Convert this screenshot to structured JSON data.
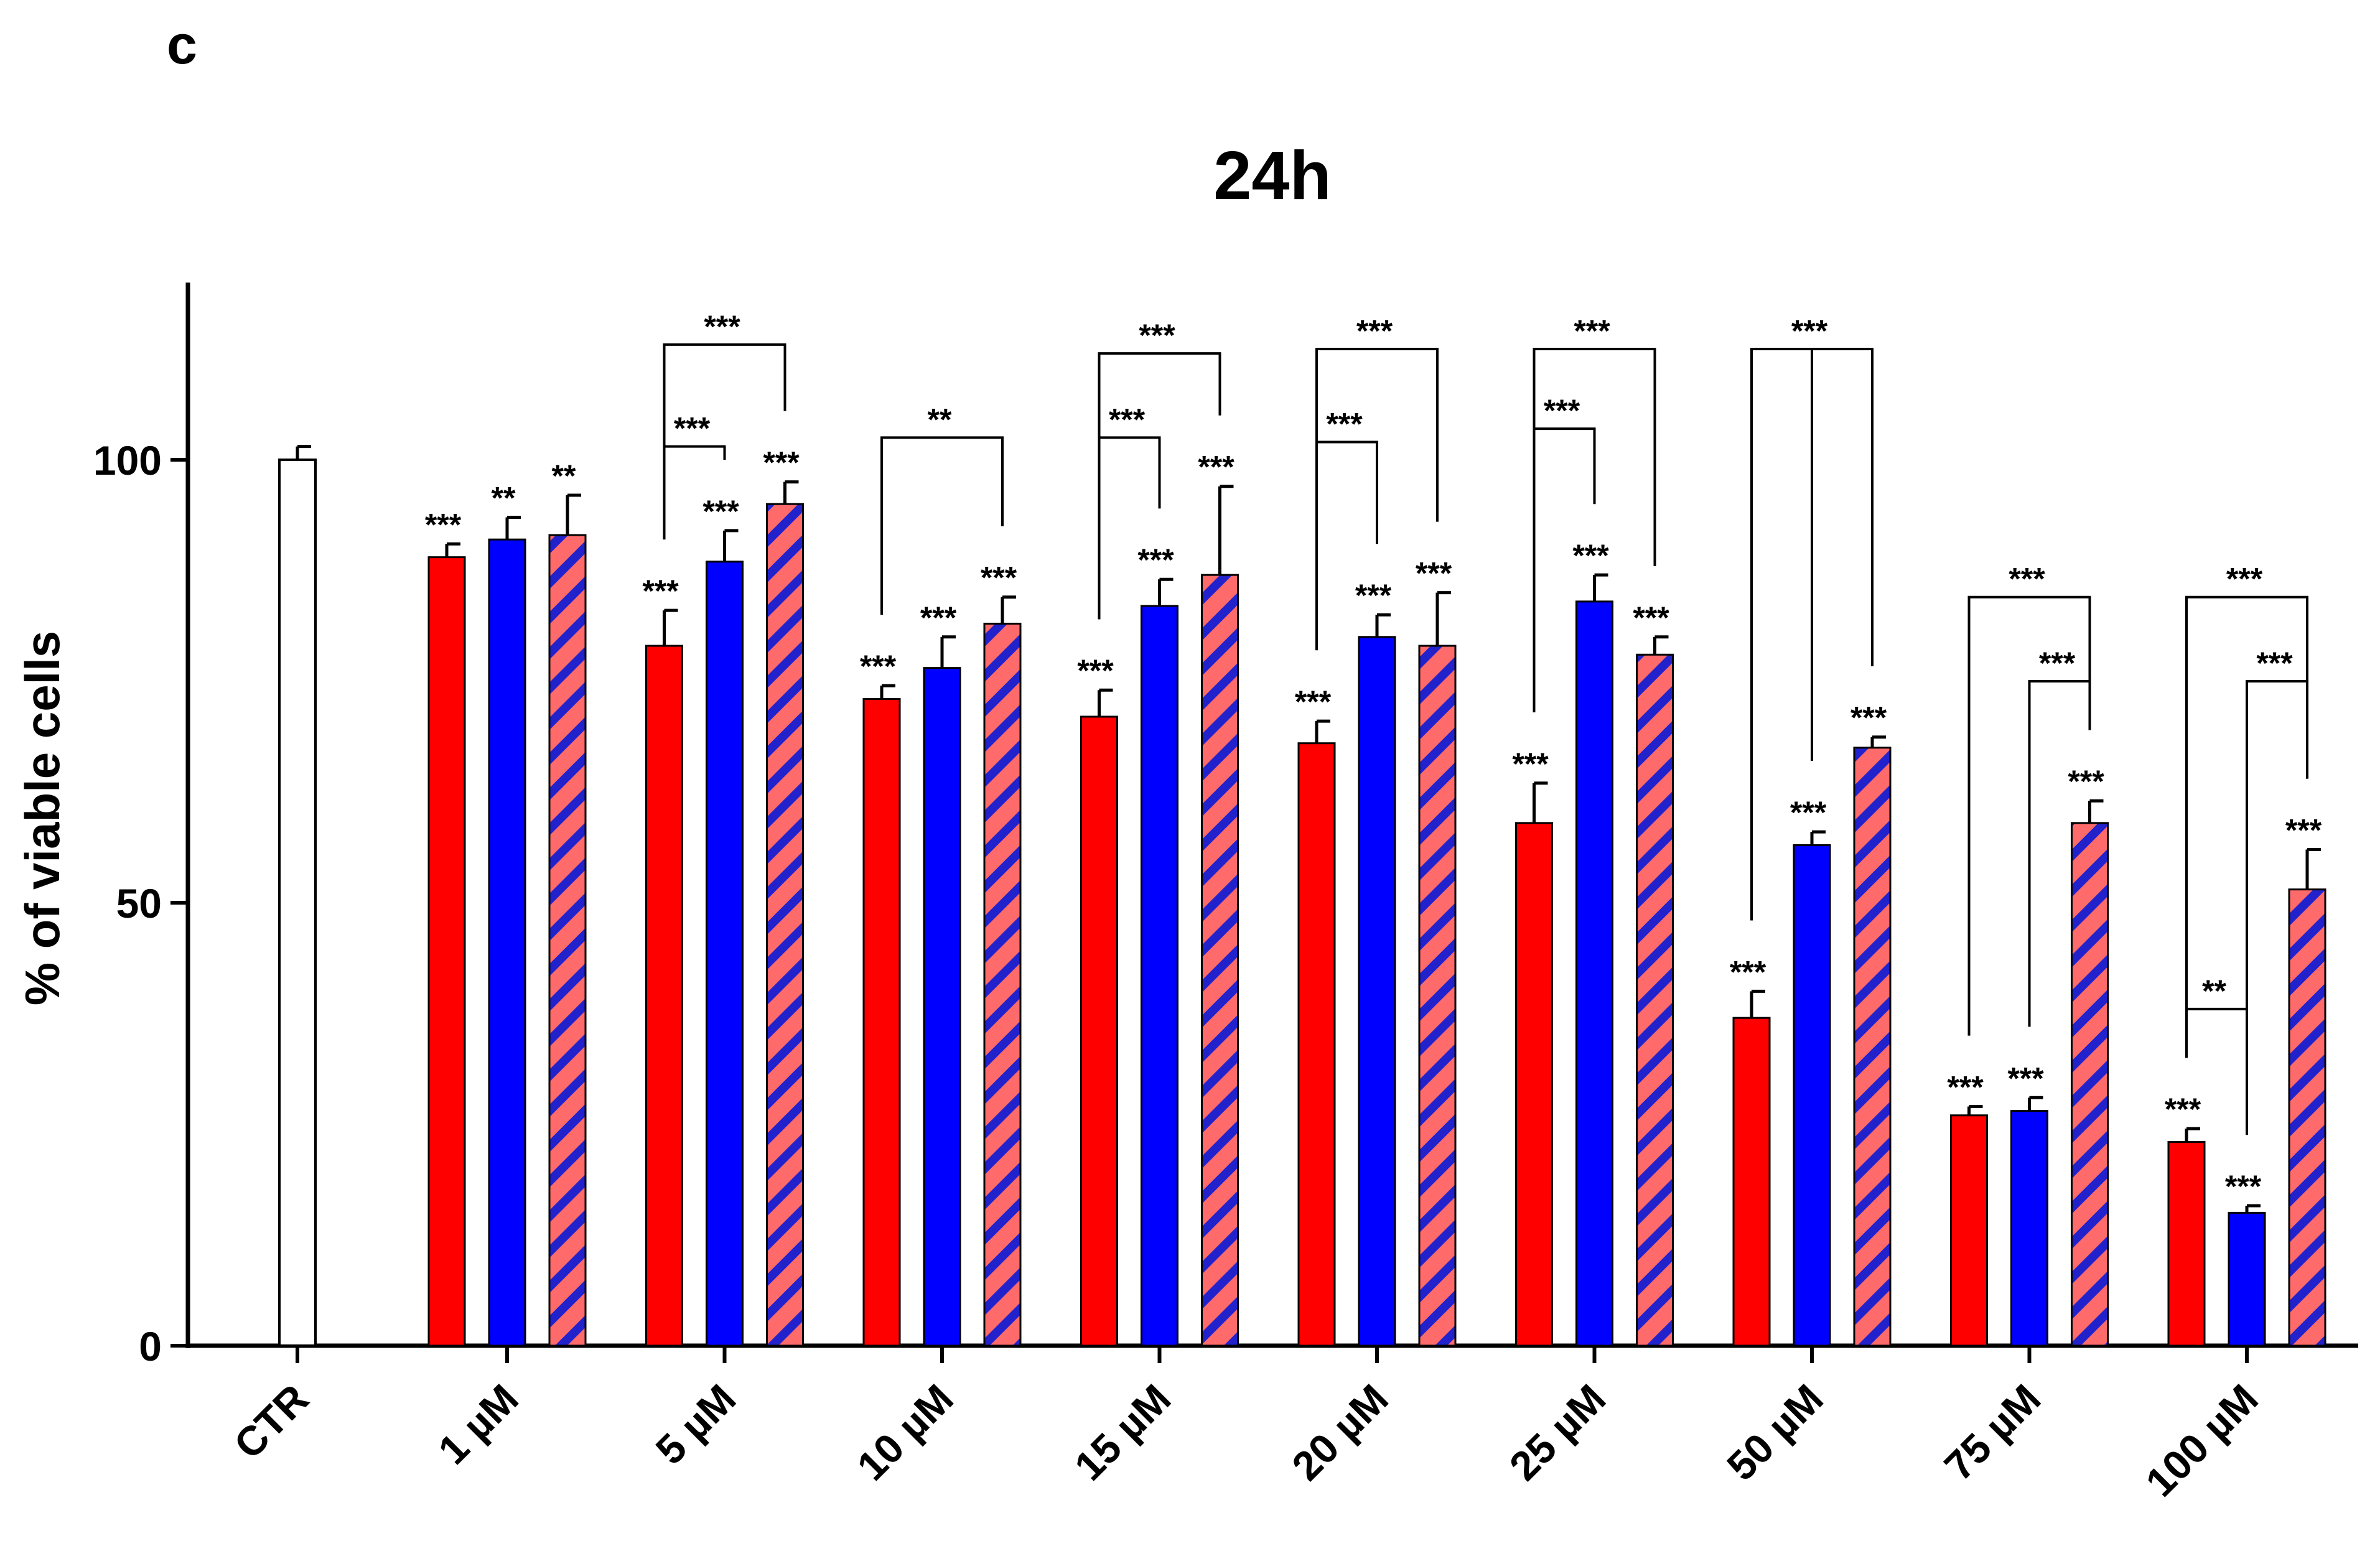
{
  "panel_label": "c",
  "chart_data": {
    "type": "bar",
    "title": "24h",
    "xlabel": "",
    "ylabel": "% of viable cells",
    "ylim": [
      0,
      120
    ],
    "yticks": [
      0,
      50,
      100
    ],
    "grid": false,
    "legend": "none",
    "control": {
      "label": "CTR",
      "value": 100,
      "error": 1.5
    },
    "categories": [
      "1 µM",
      "5 µM",
      "10 µM",
      "15 µM",
      "20 µM",
      "25 µM",
      "50 µM",
      "75 µM",
      "100 µM"
    ],
    "series": [
      {
        "color": "#ff0000",
        "pattern": "solid",
        "values": [
          89,
          79,
          73,
          71,
          68,
          59,
          37,
          26,
          23
        ],
        "errors": [
          1.5,
          4,
          1.5,
          3,
          2.5,
          4.5,
          3,
          1,
          1.5
        ],
        "labels": [
          "***",
          "***",
          "***",
          "***",
          "***",
          "***",
          "***",
          "***",
          "***"
        ]
      },
      {
        "color": "#0000ff",
        "pattern": "solid",
        "values": [
          91,
          88.5,
          76.5,
          83.5,
          80,
          84,
          56.5,
          26.5,
          15
        ],
        "errors": [
          2.5,
          3.5,
          3.5,
          3,
          2.5,
          3,
          1.5,
          1.5,
          0.8
        ],
        "labels": [
          "**",
          "***",
          "***",
          "***",
          "***",
          "***",
          "***",
          "***",
          "***"
        ]
      },
      {
        "color": "#ff6a6a",
        "stripe_color": "#2222cc",
        "pattern": "striped",
        "values": [
          91.5,
          95,
          81.5,
          87,
          79,
          78,
          67.5,
          59,
          51.5
        ],
        "errors": [
          4.5,
          2.5,
          3,
          10,
          6,
          2,
          1.2,
          2.5,
          4.5
        ],
        "labels": [
          "**",
          "***",
          "***",
          "***",
          "***",
          "***",
          "***",
          "***",
          "***"
        ]
      }
    ],
    "comparisons": [
      {
        "category": 1,
        "from": 0,
        "to": 2,
        "y": 113,
        "label": "***"
      },
      {
        "category": 1,
        "from": 0,
        "to": 1,
        "y": 101.5,
        "label": "***"
      },
      {
        "category": 2,
        "from": 0,
        "to": 2,
        "y": 102.5,
        "label": "**"
      },
      {
        "category": 3,
        "from": 0,
        "to": 2,
        "y": 112,
        "label": "***"
      },
      {
        "category": 3,
        "from": 0,
        "to": 1,
        "y": 102.5,
        "label": "***"
      },
      {
        "category": 4,
        "from": 0,
        "to": 2,
        "y": 112.5,
        "label": "***"
      },
      {
        "category": 4,
        "from": 0,
        "to": 1,
        "y": 102,
        "label": "***"
      },
      {
        "category": 5,
        "from": 0,
        "to": 2,
        "y": 112.5,
        "label": "***"
      },
      {
        "category": 5,
        "from": 0,
        "to": 1,
        "y": 103.5,
        "label": "***"
      },
      {
        "category": 6,
        "from": 0,
        "to": 2,
        "y": 112.5,
        "label": "***",
        "center_to": 1
      },
      {
        "category": 7,
        "from": 0,
        "to": 2,
        "y": 84.5,
        "label": "***"
      },
      {
        "category": 7,
        "from": 1,
        "to": 2,
        "y": 75,
        "label": "***"
      },
      {
        "category": 8,
        "from": 0,
        "to": 2,
        "y": 84.5,
        "label": "***"
      },
      {
        "category": 8,
        "from": 1,
        "to": 2,
        "y": 75,
        "label": "***"
      },
      {
        "category": 8,
        "from": 0,
        "to": 1,
        "y": 38,
        "label": "**"
      }
    ]
  }
}
